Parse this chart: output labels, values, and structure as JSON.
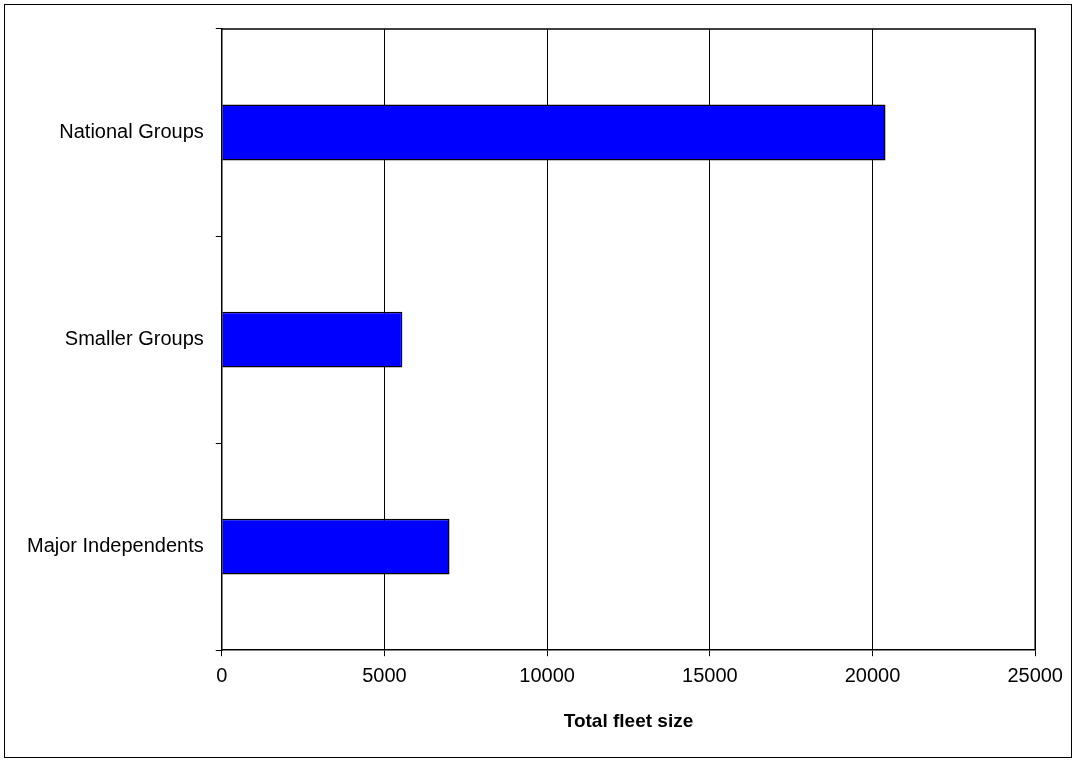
{
  "chart_data": {
    "type": "bar",
    "orientation": "horizontal",
    "xlabel": "Total fleet size",
    "categories": [
      "National Groups",
      "Smaller Groups",
      "Major Independents"
    ],
    "values": [
      20400,
      5550,
      7000
    ],
    "color": "#0000ff",
    "xlim": [
      0,
      25000
    ],
    "xticks": [
      0,
      5000,
      10000,
      15000,
      20000,
      25000
    ],
    "grid": "x",
    "legend": false
  }
}
